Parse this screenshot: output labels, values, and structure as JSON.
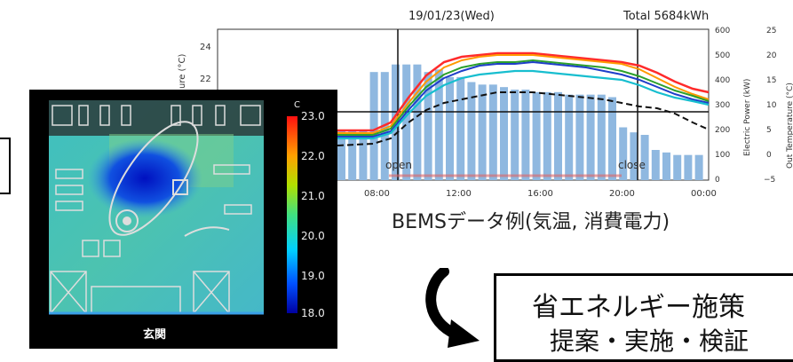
{
  "bems_chart": {
    "date": "19/01/23(Wed)",
    "total": "Total 5684kWh",
    "y_left_label": "ure (°C)",
    "y_right1_label": "Electric Power (kW)",
    "y_right2_label": "Out Temperature (°C)",
    "left_ticks": [
      "24",
      "22"
    ],
    "power_ticks": [
      "600",
      "500",
      "400",
      "300",
      "200",
      "100",
      "0"
    ],
    "out_temp_ticks": [
      "25",
      "20",
      "15",
      "10",
      "5",
      "0",
      "−5"
    ],
    "x_ticks": [
      "08:00",
      "12:00",
      "16:00",
      "20:00",
      "00:00"
    ],
    "open_label": "open",
    "close_label": "close"
  },
  "chart_data": {
    "type": "bar",
    "x": [
      "07:00",
      "07:30",
      "08:00",
      "08:30",
      "09:00",
      "09:30",
      "10:00",
      "10:30",
      "11:00",
      "11:30",
      "12:00",
      "12:30",
      "13:00",
      "13:30",
      "14:00",
      "14:30",
      "15:00",
      "15:30",
      "16:00",
      "16:30",
      "17:00",
      "17:30",
      "18:00",
      "18:30",
      "19:00",
      "19:30",
      "20:00",
      "20:30",
      "21:00",
      "21:30",
      "22:00",
      "22:30",
      "23:00",
      "23:30"
    ],
    "power_kw": [
      200,
      200,
      200,
      430,
      430,
      460,
      460,
      460,
      430,
      440,
      410,
      410,
      390,
      380,
      380,
      370,
      360,
      360,
      350,
      350,
      350,
      340,
      340,
      340,
      340,
      330,
      210,
      190,
      180,
      120,
      110,
      100,
      100,
      100
    ],
    "ylim_power": [
      0,
      600
    ]
  },
  "heatmap": {
    "scale_unit": "C",
    "scale_ticks": [
      "23.0",
      "22.0",
      "21.0",
      "20.0",
      "19.0",
      "18.0"
    ],
    "entrance_label": "玄関"
  },
  "caption": "BEMSデータ例(気温, 消費電力)",
  "callout": {
    "title": "省エネルギー施策",
    "subtitle": "提案・実施・検証"
  }
}
